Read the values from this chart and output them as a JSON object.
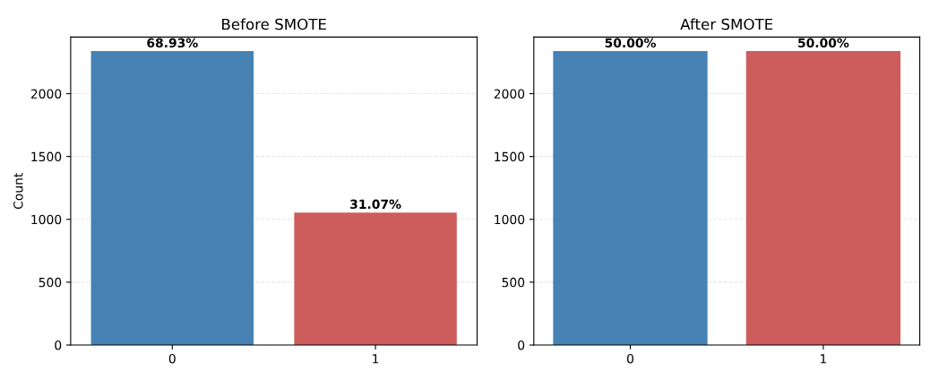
{
  "chart_data": [
    {
      "type": "bar",
      "title": "Before SMOTE",
      "ylabel": "Count",
      "categories": [
        "0",
        "1"
      ],
      "values": [
        2338,
        1054
      ],
      "colors": [
        "#4682b4",
        "#cd5c5c"
      ],
      "annotations": [
        {
          "text": "68.93%",
          "x": "0",
          "y": 2338
        },
        {
          "text": "31.07%",
          "x": "1",
          "y": 1054
        }
      ],
      "ylim": [
        0,
        2450
      ],
      "yticks": [
        0,
        500,
        1000,
        1500,
        2000
      ],
      "grid": "y"
    },
    {
      "type": "bar",
      "title": "After SMOTE",
      "categories": [
        "0",
        "1"
      ],
      "values": [
        2338,
        2338
      ],
      "colors": [
        "#4682b4",
        "#cd5c5c"
      ],
      "annotations": [
        {
          "text": "50.00%",
          "x": "0",
          "y": 2338
        },
        {
          "text": "50.00%",
          "x": "1",
          "y": 2338
        }
      ],
      "ylim": [
        0,
        2450
      ],
      "yticks": [
        0,
        500,
        1000,
        1500,
        2000
      ],
      "grid": "y"
    }
  ]
}
